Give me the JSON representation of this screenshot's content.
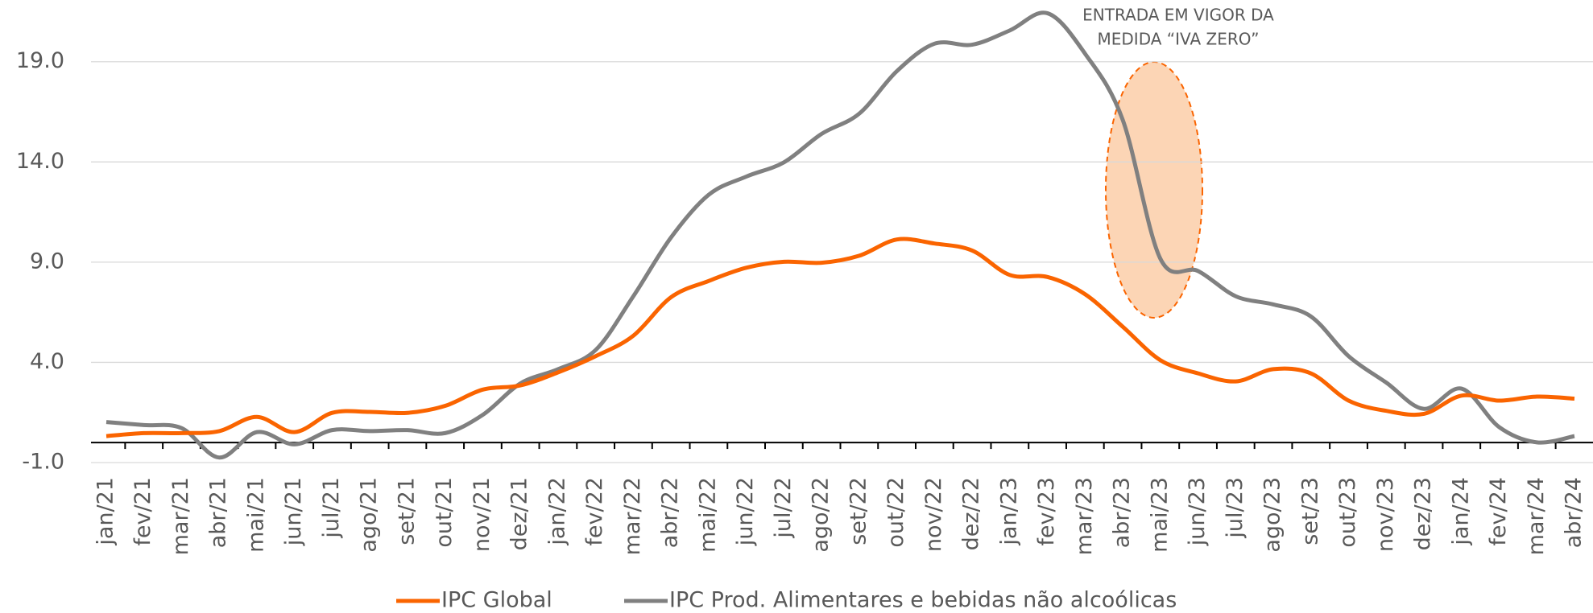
{
  "chart_data": {
    "type": "line",
    "categories": [
      "jan/21",
      "fev/21",
      "mar/21",
      "abr/21",
      "mai/21",
      "jun/21",
      "jul/21",
      "ago/21",
      "set/21",
      "out/21",
      "nov/21",
      "dez/21",
      "jan/22",
      "fev/22",
      "mar/22",
      "abr/22",
      "mai/22",
      "jun/22",
      "jul/22",
      "ago/22",
      "set/22",
      "out/22",
      "nov/22",
      "dez/22",
      "jan/23",
      "fev/23",
      "mar/23",
      "abr/23",
      "mai/23",
      "jun/23",
      "jul/23",
      "ago/23",
      "set/23",
      "out/23",
      "nov/23",
      "dez/23",
      "jan/24",
      "fev/24",
      "mar/24",
      "abr/24"
    ],
    "series": [
      {
        "name": "IPC Global",
        "color": "#fa6400",
        "values": [
          0.32,
          0.47,
          0.47,
          0.57,
          1.28,
          0.52,
          1.48,
          1.53,
          1.48,
          1.83,
          2.64,
          2.85,
          3.5,
          4.31,
          5.33,
          7.25,
          8.06,
          8.72,
          9.02,
          8.97,
          9.32,
          10.13,
          9.93,
          9.58,
          8.36,
          8.26,
          7.4,
          5.78,
          4.11,
          3.45,
          3.05,
          3.66,
          3.45,
          2.09,
          1.58,
          1.43,
          2.34,
          2.09,
          2.29,
          2.19
        ]
      },
      {
        "name": "IPC Prod. Alimentares e bebidas não alcoólicas",
        "color": "#808080",
        "values": [
          1.02,
          0.87,
          0.72,
          -0.75,
          0.52,
          -0.09,
          0.62,
          0.57,
          0.62,
          0.47,
          1.38,
          2.95,
          3.66,
          4.62,
          7.3,
          10.23,
          12.36,
          13.27,
          13.98,
          15.4,
          16.41,
          18.53,
          19.9,
          19.85,
          20.56,
          21.42,
          19.4,
          16.1,
          9.17,
          8.56,
          7.3,
          6.89,
          6.29,
          4.31,
          2.99,
          1.68,
          2.69,
          0.77,
          0.01,
          0.32
        ]
      }
    ],
    "ylim": [
      -1,
      22
    ],
    "yticks": [
      {
        "value": -1,
        "label": "-1.0"
      },
      {
        "value": 4,
        "label": "4.0"
      },
      {
        "value": 9,
        "label": "9.0"
      },
      {
        "value": 14,
        "label": "14.0"
      },
      {
        "value": 19,
        "label": "19.0"
      }
    ],
    "grid": true,
    "legend": "bottom",
    "annotations": [
      "ENTRADA EM VIGOR DA",
      "MEDIDA “IVA ZERO”"
    ]
  }
}
